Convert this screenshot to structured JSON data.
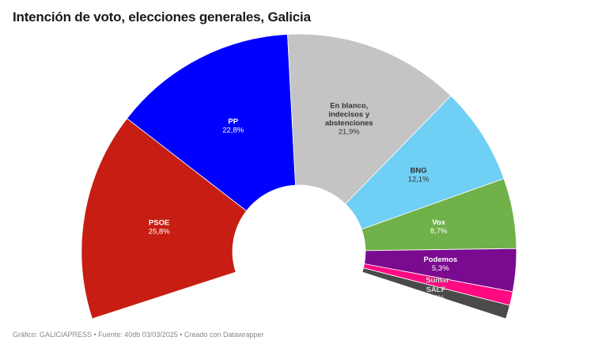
{
  "title": "Intención de voto, elecciones generales, Galicia",
  "footer": "Gráfico: GALICIAPRESS • Fuente: 40db 03/03/2025 • Creado con Datawrapper",
  "chart_data": {
    "type": "pie",
    "subtype": "parliament-semicircle-donut",
    "title": "Intención de voto, elecciones generales, Galicia",
    "categories": [
      "PSOE",
      "PP",
      "En blanco, indecisos y abstenciones",
      "BNG",
      "Vox",
      "Podemos",
      "Sumar",
      "SALF"
    ],
    "values": [
      25.8,
      22.8,
      21.9,
      12.1,
      8.7,
      5.3,
      1.7,
      1.7
    ],
    "value_labels": [
      "25,8%",
      "22,8%",
      "21,9%",
      "12,1%",
      "8,7%",
      "5,3%",
      "",
      "1,7%"
    ],
    "colors": [
      "#c71d12",
      "#0000ff",
      "#c4c4c4",
      "#6fcff5",
      "#70b14a",
      "#7a0a90",
      "#ff0a82",
      "#4a4a4a"
    ],
    "label_colors": [
      "#ffffff",
      "#ffffff",
      "#333333",
      "#333333",
      "#ffffff",
      "#ffffff",
      "#ffffff",
      "#ffffff"
    ],
    "unit": "%",
    "source": "40db 03/03/2025"
  }
}
